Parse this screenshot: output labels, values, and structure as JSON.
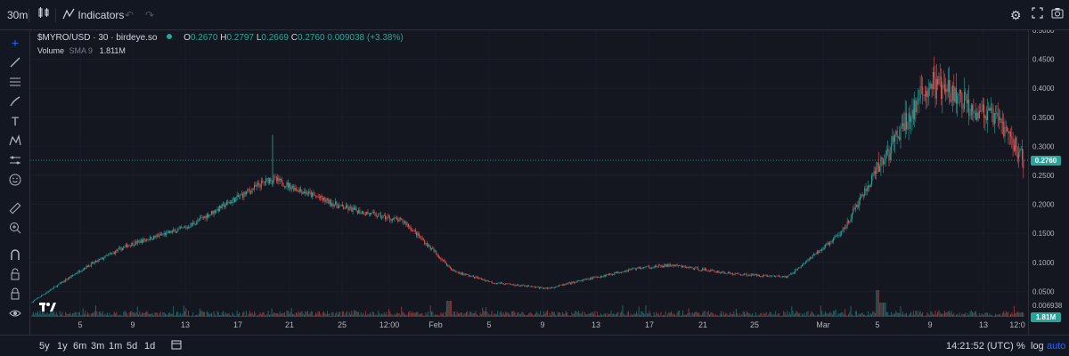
{
  "toolbar": {
    "interval": "30m",
    "indicators_label": "Indicators"
  },
  "legend": {
    "symbol": "$MYRO/USD · 30 · birdeye.so",
    "o_label": "O",
    "o": "0.2670",
    "h_label": "H",
    "h": "0.2797",
    "l_label": "L",
    "l": "0.2669",
    "c_label": "C",
    "c": "0.2760",
    "change": "0.009038 (+3.38%)",
    "volume_label": "Volume",
    "volume_sma": "SMA 9",
    "volume_value": "1.811M"
  },
  "price_axis": {
    "ticks": [
      "0.5000",
      "0.4500",
      "0.4000",
      "0.3500",
      "0.3000",
      "0.2500",
      "0.2000",
      "0.1500",
      "0.1000",
      "0.0500",
      "0.006938"
    ],
    "last_price": "0.2760",
    "volume_tag": "1.81M"
  },
  "time_axis": {
    "ticks": [
      "5",
      "9",
      "13",
      "17",
      "21",
      "25",
      "12:00",
      "Feb",
      "5",
      "9",
      "13",
      "17",
      "21",
      "25",
      "Mar",
      "5",
      "9",
      "13",
      "12:0"
    ]
  },
  "bottom": {
    "ranges": [
      "5y",
      "1y",
      "6m",
      "3m",
      "1m",
      "5d",
      "1d"
    ],
    "clock": "14:21:52 (UTC)",
    "percent": "%",
    "log": "log",
    "auto": "auto"
  },
  "colors": {
    "up": "#26a69a",
    "down": "#ef5350",
    "background": "#141620",
    "price_line": "#26a69a"
  },
  "chart_data": {
    "type": "line",
    "title": "$MYRO/USD · 30 · birdeye.so",
    "ylim": [
      0,
      0.5
    ],
    "x": [
      "5",
      "9",
      "13",
      "17",
      "21",
      "25",
      "12:00",
      "Feb",
      "5",
      "9",
      "13",
      "17",
      "21",
      "25",
      "Mar",
      "5",
      "9",
      "13",
      "12:0"
    ],
    "series": [
      {
        "name": "$MYRO/USD",
        "values": [
          0.03,
          0.09,
          0.13,
          0.16,
          0.245,
          0.195,
          0.17,
          0.085,
          0.065,
          0.055,
          0.09,
          0.095,
          0.08,
          0.075,
          0.15,
          0.27,
          0.41,
          0.34,
          0.276
        ]
      }
    ]
  }
}
